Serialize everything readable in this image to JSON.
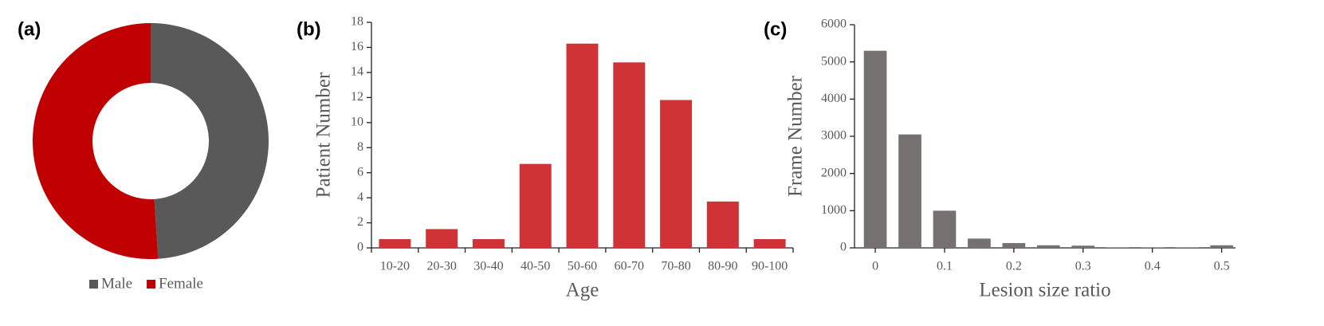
{
  "chart_data": [
    {
      "type": "donut",
      "label": "(a)",
      "categories": [
        "Male",
        "Female"
      ],
      "values": [
        49,
        51
      ],
      "colors": [
        "#595959",
        "#c00000"
      ]
    },
    {
      "type": "bar",
      "label": "(b)",
      "ylabel": "Patient Number",
      "xlabel": "Age",
      "categories": [
        "10-20",
        "20-30",
        "30-40",
        "40-50",
        "50-60",
        "60-70",
        "70-80",
        "80-90",
        "90-100"
      ],
      "values": [
        0.7,
        1.5,
        0.7,
        6.7,
        16.3,
        14.8,
        11.8,
        3.7,
        0.7
      ],
      "color": "#d03336",
      "ylim": [
        0,
        18
      ],
      "yticks": [
        0,
        2,
        4,
        6,
        8,
        10,
        12,
        14,
        16,
        18
      ]
    },
    {
      "type": "bar",
      "label": "(c)",
      "ylabel": "Frame Number",
      "xlabel": "Lesion size ratio",
      "x": [
        0,
        0.05,
        0.1,
        0.15,
        0.2,
        0.25,
        0.3,
        0.35,
        0.4,
        0.45,
        0.5
      ],
      "values": [
        5300,
        3050,
        1000,
        250,
        130,
        70,
        60,
        10,
        10,
        10,
        70
      ],
      "color": "#767171",
      "xlim": [
        -0.03,
        0.52
      ],
      "xticks": [
        0,
        0.1,
        0.2,
        0.3,
        0.4,
        0.5
      ],
      "ylim": [
        0,
        6000
      ],
      "yticks": [
        0,
        1000,
        2000,
        3000,
        4000,
        5000,
        6000
      ]
    }
  ]
}
